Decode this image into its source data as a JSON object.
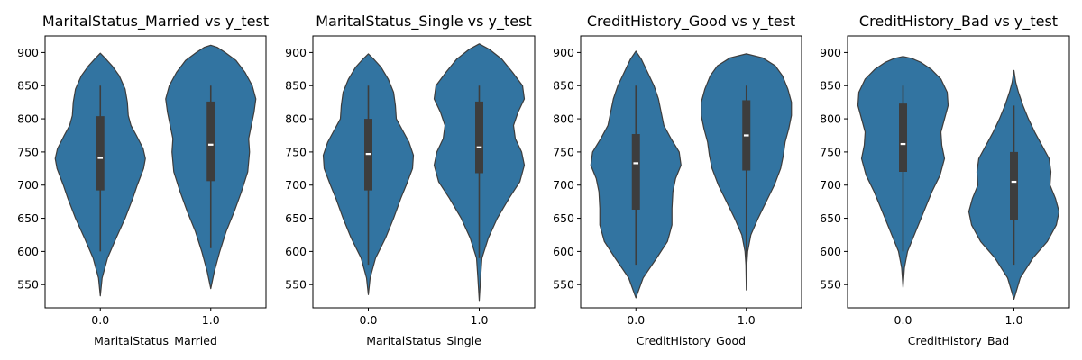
{
  "chart_data": [
    {
      "type": "violin",
      "title": "MaritalStatus_Married vs y_test",
      "xlabel": "MaritalStatus_Married",
      "ylabel": "",
      "categories": [
        "0.0",
        "1.0"
      ],
      "ylim": [
        515,
        925
      ],
      "yticks": [
        "550",
        "600",
        "650",
        "700",
        "750",
        "800",
        "850",
        "900"
      ],
      "grid": false,
      "color": "#3274a1",
      "distributions": [
        {
          "min": 533,
          "max": 899,
          "whisker_low": 600,
          "whisker_high": 850,
          "q1": 692,
          "median": 741,
          "q3": 804,
          "density": [
            [
              533,
              0.0
            ],
            [
              560,
              0.04
            ],
            [
              590,
              0.16
            ],
            [
              620,
              0.35
            ],
            [
              650,
              0.55
            ],
            [
              680,
              0.72
            ],
            [
              700,
              0.82
            ],
            [
              725,
              0.96
            ],
            [
              740,
              1.0
            ],
            [
              755,
              0.95
            ],
            [
              775,
              0.8
            ],
            [
              790,
              0.68
            ],
            [
              805,
              0.62
            ],
            [
              825,
              0.6
            ],
            [
              845,
              0.55
            ],
            [
              865,
              0.42
            ],
            [
              880,
              0.26
            ],
            [
              892,
              0.1
            ],
            [
              899,
              0.0
            ]
          ]
        },
        {
          "min": 544,
          "max": 911,
          "whisker_low": 605,
          "whisker_high": 850,
          "q1": 706,
          "median": 761,
          "q3": 826,
          "density": [
            [
              544,
              0.0
            ],
            [
              570,
              0.08
            ],
            [
              600,
              0.2
            ],
            [
              630,
              0.34
            ],
            [
              660,
              0.52
            ],
            [
              690,
              0.68
            ],
            [
              720,
              0.82
            ],
            [
              750,
              0.86
            ],
            [
              770,
              0.84
            ],
            [
              790,
              0.9
            ],
            [
              810,
              0.96
            ],
            [
              830,
              1.0
            ],
            [
              850,
              0.92
            ],
            [
              870,
              0.76
            ],
            [
              888,
              0.56
            ],
            [
              900,
              0.32
            ],
            [
              908,
              0.14
            ],
            [
              911,
              0.0
            ]
          ]
        }
      ]
    },
    {
      "type": "violin",
      "title": "MaritalStatus_Single vs y_test",
      "xlabel": "MaritalStatus_Single",
      "ylabel": "",
      "categories": [
        "0.0",
        "1.0"
      ],
      "ylim": [
        515,
        925
      ],
      "yticks": [
        "550",
        "600",
        "650",
        "700",
        "750",
        "800",
        "850",
        "900"
      ],
      "grid": false,
      "color": "#3274a1",
      "distributions": [
        {
          "min": 535,
          "max": 898,
          "whisker_low": 580,
          "whisker_high": 850,
          "q1": 692,
          "median": 747,
          "q3": 800,
          "density": [
            [
              535,
              0.0
            ],
            [
              560,
              0.04
            ],
            [
              590,
              0.16
            ],
            [
              620,
              0.38
            ],
            [
              650,
              0.56
            ],
            [
              680,
              0.72
            ],
            [
              700,
              0.84
            ],
            [
              725,
              0.98
            ],
            [
              745,
              1.0
            ],
            [
              765,
              0.9
            ],
            [
              785,
              0.74
            ],
            [
              800,
              0.62
            ],
            [
              820,
              0.6
            ],
            [
              840,
              0.56
            ],
            [
              860,
              0.44
            ],
            [
              878,
              0.28
            ],
            [
              890,
              0.12
            ],
            [
              898,
              0.0
            ]
          ]
        },
        {
          "min": 526,
          "max": 913,
          "whisker_low": 590,
          "whisker_high": 850,
          "q1": 718,
          "median": 757,
          "q3": 826,
          "density": [
            [
              526,
              0.0
            ],
            [
              560,
              0.03
            ],
            [
              590,
              0.06
            ],
            [
              620,
              0.2
            ],
            [
              650,
              0.4
            ],
            [
              680,
              0.66
            ],
            [
              705,
              0.9
            ],
            [
              730,
              1.0
            ],
            [
              750,
              0.94
            ],
            [
              770,
              0.8
            ],
            [
              790,
              0.76
            ],
            [
              810,
              0.86
            ],
            [
              830,
              1.0
            ],
            [
              850,
              0.96
            ],
            [
              870,
              0.74
            ],
            [
              890,
              0.5
            ],
            [
              905,
              0.22
            ],
            [
              913,
              0.0
            ]
          ]
        }
      ]
    },
    {
      "type": "violin",
      "title": "CreditHistory_Good vs y_test",
      "xlabel": "CreditHistory_Good",
      "ylabel": "",
      "categories": [
        "0.0",
        "1.0"
      ],
      "ylim": [
        515,
        925
      ],
      "yticks": [
        "550",
        "600",
        "650",
        "700",
        "750",
        "800",
        "850",
        "900"
      ],
      "grid": false,
      "color": "#3274a1",
      "distributions": [
        {
          "min": 530,
          "max": 902,
          "whisker_low": 580,
          "whisker_high": 850,
          "q1": 663,
          "median": 733,
          "q3": 777,
          "density": [
            [
              530,
              0.0
            ],
            [
              560,
              0.16
            ],
            [
              590,
              0.46
            ],
            [
              615,
              0.7
            ],
            [
              640,
              0.8
            ],
            [
              665,
              0.8
            ],
            [
              690,
              0.82
            ],
            [
              710,
              0.88
            ],
            [
              730,
              1.0
            ],
            [
              750,
              0.96
            ],
            [
              770,
              0.78
            ],
            [
              790,
              0.62
            ],
            [
              810,
              0.56
            ],
            [
              830,
              0.5
            ],
            [
              850,
              0.4
            ],
            [
              870,
              0.26
            ],
            [
              890,
              0.12
            ],
            [
              902,
              0.0
            ]
          ]
        },
        {
          "min": 542,
          "max": 898,
          "whisker_low": 580,
          "whisker_high": 850,
          "q1": 722,
          "median": 775,
          "q3": 828,
          "density": [
            [
              542,
              0.0
            ],
            [
              580,
              0.01
            ],
            [
              600,
              0.03
            ],
            [
              625,
              0.1
            ],
            [
              650,
              0.26
            ],
            [
              675,
              0.44
            ],
            [
              700,
              0.62
            ],
            [
              725,
              0.76
            ],
            [
              745,
              0.82
            ],
            [
              765,
              0.86
            ],
            [
              785,
              0.94
            ],
            [
              805,
              1.0
            ],
            [
              825,
              1.0
            ],
            [
              845,
              0.92
            ],
            [
              865,
              0.8
            ],
            [
              880,
              0.64
            ],
            [
              892,
              0.36
            ],
            [
              898,
              0.0
            ]
          ]
        }
      ]
    },
    {
      "type": "violin",
      "title": "CreditHistory_Bad vs y_test",
      "xlabel": "CreditHistory_Bad",
      "ylabel": "",
      "categories": [
        "0.0",
        "1.0"
      ],
      "ylim": [
        515,
        925
      ],
      "yticks": [
        "550",
        "600",
        "650",
        "700",
        "750",
        "800",
        "850",
        "900"
      ],
      "grid": false,
      "color": "#3274a1",
      "distributions": [
        {
          "min": 546,
          "max": 894,
          "whisker_low": 600,
          "whisker_high": 850,
          "q1": 720,
          "median": 762,
          "q3": 823,
          "density": [
            [
              546,
              0.0
            ],
            [
              575,
              0.03
            ],
            [
              600,
              0.1
            ],
            [
              630,
              0.28
            ],
            [
              660,
              0.46
            ],
            [
              690,
              0.64
            ],
            [
              715,
              0.82
            ],
            [
              740,
              0.92
            ],
            [
              760,
              0.86
            ],
            [
              780,
              0.84
            ],
            [
              800,
              0.92
            ],
            [
              820,
              1.0
            ],
            [
              840,
              0.98
            ],
            [
              860,
              0.84
            ],
            [
              875,
              0.62
            ],
            [
              885,
              0.4
            ],
            [
              891,
              0.2
            ],
            [
              894,
              0.0
            ]
          ]
        },
        {
          "min": 528,
          "max": 873,
          "whisker_low": 580,
          "whisker_high": 820,
          "q1": 648,
          "median": 705,
          "q3": 750,
          "density": [
            [
              528,
              0.0
            ],
            [
              560,
              0.14
            ],
            [
              590,
              0.42
            ],
            [
              615,
              0.74
            ],
            [
              640,
              0.94
            ],
            [
              660,
              1.0
            ],
            [
              680,
              0.92
            ],
            [
              700,
              0.8
            ],
            [
              720,
              0.82
            ],
            [
              740,
              0.78
            ],
            [
              760,
              0.62
            ],
            [
              780,
              0.46
            ],
            [
              800,
              0.32
            ],
            [
              820,
              0.2
            ],
            [
              840,
              0.1
            ],
            [
              855,
              0.04
            ],
            [
              873,
              0.0
            ]
          ]
        }
      ]
    }
  ]
}
